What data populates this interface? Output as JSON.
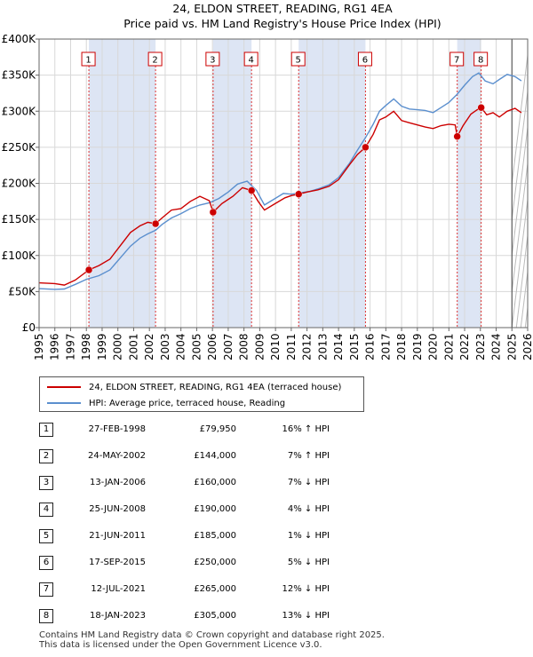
{
  "chart_data": {
    "type": "line",
    "title": "24, ELDON STREET, READING, RG1 4EA",
    "subtitle": "Price paid vs. HM Land Registry's House Price Index (HPI)",
    "xlabel": "",
    "ylabel": "",
    "xlim": [
      1995,
      2026
    ],
    "ylim": [
      0,
      400000
    ],
    "x_ticks": [
      "1995",
      "1996",
      "1997",
      "1998",
      "1999",
      "2000",
      "2001",
      "2002",
      "2003",
      "2004",
      "2005",
      "2006",
      "2007",
      "2008",
      "2009",
      "2010",
      "2011",
      "2012",
      "2013",
      "2014",
      "2015",
      "2016",
      "2017",
      "2018",
      "2019",
      "2020",
      "2021",
      "2022",
      "2023",
      "2024",
      "2025",
      "2026"
    ],
    "y_ticks": [
      {
        "value": 0,
        "label": "£0"
      },
      {
        "value": 50000,
        "label": "£50K"
      },
      {
        "value": 100000,
        "label": "£100K"
      },
      {
        "value": 150000,
        "label": "£150K"
      },
      {
        "value": 200000,
        "label": "£200K"
      },
      {
        "value": 250000,
        "label": "£250K"
      },
      {
        "value": 300000,
        "label": "£300K"
      },
      {
        "value": 350000,
        "label": "£350K"
      },
      {
        "value": 400000,
        "label": "£400K"
      }
    ],
    "forecast_start": 2025.0,
    "series": [
      {
        "name": "24, ELDON STREET, READING, RG1 4EA (terraced house)",
        "color": "#cc0000",
        "points": [
          [
            1995.0,
            62000
          ],
          [
            1996.0,
            61000
          ],
          [
            1996.6,
            59000
          ],
          [
            1997.3,
            66000
          ],
          [
            1998.16,
            79950
          ],
          [
            1998.8,
            86000
          ],
          [
            1999.5,
            95000
          ],
          [
            2000.2,
            115000
          ],
          [
            2000.8,
            132000
          ],
          [
            2001.4,
            141000
          ],
          [
            2001.9,
            146000
          ],
          [
            2002.39,
            144000
          ],
          [
            2002.8,
            152000
          ],
          [
            2003.4,
            163000
          ],
          [
            2004.0,
            165000
          ],
          [
            2004.6,
            175000
          ],
          [
            2005.2,
            182000
          ],
          [
            2005.8,
            176000
          ],
          [
            2006.04,
            160000
          ],
          [
            2006.6,
            172000
          ],
          [
            2007.3,
            182000
          ],
          [
            2007.9,
            194000
          ],
          [
            2008.48,
            190000
          ],
          [
            2008.9,
            175000
          ],
          [
            2009.3,
            163000
          ],
          [
            2009.9,
            171000
          ],
          [
            2010.6,
            180000
          ],
          [
            2011.0,
            183000
          ],
          [
            2011.47,
            185000
          ],
          [
            2012.0,
            188000
          ],
          [
            2012.7,
            191000
          ],
          [
            2013.4,
            196000
          ],
          [
            2014.0,
            205000
          ],
          [
            2014.7,
            226000
          ],
          [
            2015.2,
            240000
          ],
          [
            2015.71,
            250000
          ],
          [
            2016.2,
            268000
          ],
          [
            2016.6,
            288000
          ],
          [
            2017.0,
            292000
          ],
          [
            2017.5,
            300000
          ],
          [
            2018.0,
            287000
          ],
          [
            2018.5,
            284000
          ],
          [
            2019.0,
            281000
          ],
          [
            2019.5,
            278000
          ],
          [
            2020.0,
            276000
          ],
          [
            2020.5,
            280000
          ],
          [
            2021.0,
            282000
          ],
          [
            2021.4,
            281000
          ],
          [
            2021.53,
            265000
          ],
          [
            2021.9,
            280000
          ],
          [
            2022.4,
            296000
          ],
          [
            2022.8,
            302000
          ],
          [
            2023.05,
            305000
          ],
          [
            2023.4,
            295000
          ],
          [
            2023.8,
            298000
          ],
          [
            2024.2,
            292000
          ],
          [
            2024.7,
            300000
          ],
          [
            2025.2,
            304000
          ],
          [
            2025.6,
            298000
          ]
        ]
      },
      {
        "name": "HPI: Average price, terraced house, Reading",
        "color": "#5b8fce",
        "points": [
          [
            1995.0,
            54000
          ],
          [
            1996.0,
            53000
          ],
          [
            1996.6,
            53500
          ],
          [
            1997.3,
            60000
          ],
          [
            1998.0,
            67000
          ],
          [
            1998.8,
            72000
          ],
          [
            1999.5,
            80000
          ],
          [
            2000.2,
            98000
          ],
          [
            2000.8,
            113000
          ],
          [
            2001.4,
            124000
          ],
          [
            2001.9,
            130000
          ],
          [
            2002.4,
            135000
          ],
          [
            2002.8,
            143000
          ],
          [
            2003.4,
            152000
          ],
          [
            2004.0,
            158000
          ],
          [
            2004.6,
            165000
          ],
          [
            2005.2,
            170000
          ],
          [
            2005.8,
            173000
          ],
          [
            2006.4,
            179000
          ],
          [
            2007.0,
            188000
          ],
          [
            2007.6,
            199000
          ],
          [
            2008.2,
            203000
          ],
          [
            2008.8,
            190000
          ],
          [
            2009.3,
            170000
          ],
          [
            2009.9,
            178000
          ],
          [
            2010.5,
            186000
          ],
          [
            2011.0,
            185000
          ],
          [
            2011.6,
            187000
          ],
          [
            2012.2,
            189000
          ],
          [
            2012.8,
            193000
          ],
          [
            2013.4,
            198000
          ],
          [
            2014.0,
            208000
          ],
          [
            2014.7,
            228000
          ],
          [
            2015.2,
            246000
          ],
          [
            2015.7,
            263000
          ],
          [
            2016.2,
            282000
          ],
          [
            2016.6,
            300000
          ],
          [
            2017.0,
            308000
          ],
          [
            2017.5,
            317000
          ],
          [
            2018.0,
            307000
          ],
          [
            2018.5,
            303000
          ],
          [
            2019.0,
            302000
          ],
          [
            2019.5,
            301000
          ],
          [
            2020.0,
            298000
          ],
          [
            2020.5,
            305000
          ],
          [
            2021.0,
            312000
          ],
          [
            2021.5,
            323000
          ],
          [
            2022.0,
            336000
          ],
          [
            2022.5,
            348000
          ],
          [
            2022.9,
            353000
          ],
          [
            2023.3,
            342000
          ],
          [
            2023.8,
            338000
          ],
          [
            2024.2,
            344000
          ],
          [
            2024.7,
            351000
          ],
          [
            2025.2,
            348000
          ],
          [
            2025.6,
            342000
          ]
        ]
      }
    ],
    "sale_markers": [
      {
        "id": "1",
        "year": 1998.16,
        "value": 79950
      },
      {
        "id": "2",
        "year": 2002.39,
        "value": 144000
      },
      {
        "id": "3",
        "year": 2006.04,
        "value": 160000
      },
      {
        "id": "4",
        "year": 2008.48,
        "value": 190000
      },
      {
        "id": "5",
        "year": 2011.47,
        "value": 185000
      },
      {
        "id": "6",
        "year": 2015.71,
        "value": 250000
      },
      {
        "id": "7",
        "year": 2021.53,
        "value": 265000
      },
      {
        "id": "8",
        "year": 2023.05,
        "value": 305000
      }
    ],
    "shaded_ranges": [
      [
        1998.16,
        2002.39
      ],
      [
        2006.04,
        2008.48
      ],
      [
        2011.47,
        2015.71
      ],
      [
        2021.53,
        2023.05
      ]
    ],
    "legend_position": "below"
  },
  "legend": {
    "property_label": "24, ELDON STREET, READING, RG1 4EA (terraced house)",
    "hpi_label": "HPI: Average price, terraced house, Reading"
  },
  "sales": [
    {
      "num": "1",
      "date": "27-FEB-1998",
      "price": "£79,950",
      "hpi": "16% ↑ HPI"
    },
    {
      "num": "2",
      "date": "24-MAY-2002",
      "price": "£144,000",
      "hpi": "7% ↑ HPI"
    },
    {
      "num": "3",
      "date": "13-JAN-2006",
      "price": "£160,000",
      "hpi": "7% ↓ HPI"
    },
    {
      "num": "4",
      "date": "25-JUN-2008",
      "price": "£190,000",
      "hpi": "4% ↓ HPI"
    },
    {
      "num": "5",
      "date": "21-JUN-2011",
      "price": "£185,000",
      "hpi": "1% ↓ HPI"
    },
    {
      "num": "6",
      "date": "17-SEP-2015",
      "price": "£250,000",
      "hpi": "5% ↓ HPI"
    },
    {
      "num": "7",
      "date": "12-JUL-2021",
      "price": "£265,000",
      "hpi": "12% ↓ HPI"
    },
    {
      "num": "8",
      "date": "18-JAN-2023",
      "price": "£305,000",
      "hpi": "13% ↓ HPI"
    }
  ],
  "footer": {
    "line1": "Contains HM Land Registry data © Crown copyright and database right 2025.",
    "line2": "This data is licensed under the Open Government Licence v3.0."
  }
}
